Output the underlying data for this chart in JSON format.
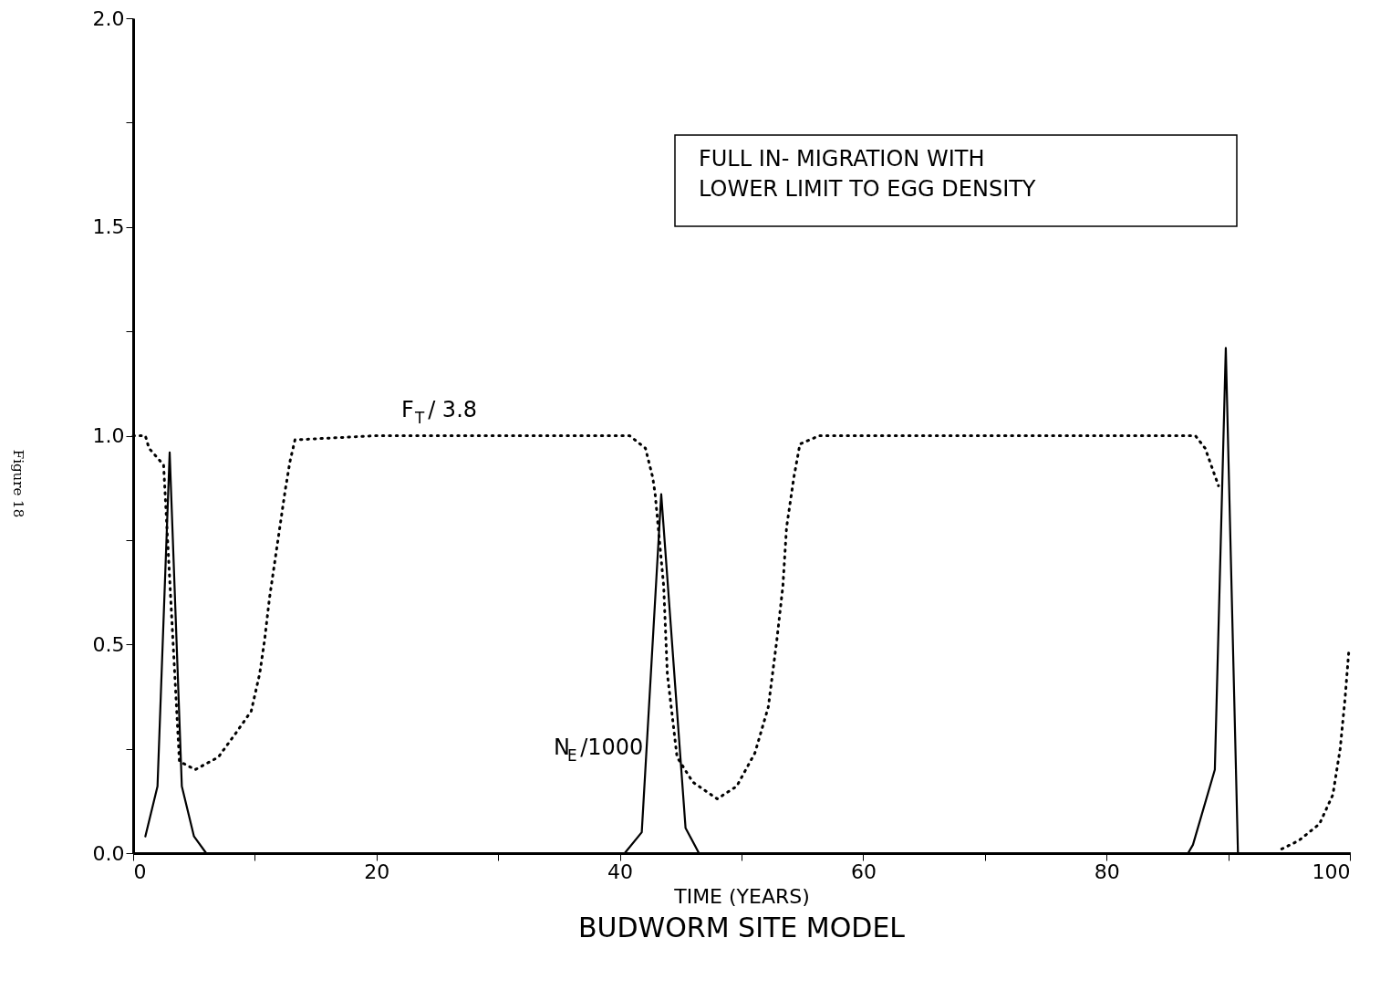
{
  "chart_data": {
    "type": "line",
    "title": "BUDWORM SITE MODEL",
    "xlabel": "TIME (YEARS)",
    "annotations": [
      "FULL  IN- MIGRATION  WITH\nLOWER  LIMIT  TO  EGG  DENSITY",
      "Figure 18"
    ],
    "xlim": [
      0,
      100
    ],
    "ylim": [
      0,
      2.0
    ],
    "xticks": [
      0,
      {
        "value": 10,
        "label": null
      },
      20,
      {
        "value": 30,
        "label": null
      },
      40,
      {
        "value": 50,
        "label": null
      },
      60,
      {
        "value": 70,
        "label": null
      },
      80,
      {
        "value": 90,
        "label": null
      },
      100
    ],
    "yticks": [
      {
        "value": 0,
        "label": "0.0"
      },
      {
        "value": 0.25,
        "label": null
      },
      {
        "value": 0.5,
        "label": "0.5"
      },
      {
        "value": 0.75,
        "label": null
      },
      {
        "value": 1.0,
        "label": "1.0"
      },
      {
        "value": 1.25,
        "label": null
      },
      {
        "value": 1.5,
        "label": "1.5"
      },
      {
        "value": 1.75,
        "label": null
      },
      {
        "value": 2.0,
        "label": "2.0"
      }
    ],
    "grid": false,
    "marker": "none",
    "series": [
      {
        "name": "F$_{T}$ / 3.8",
        "color": "#000000",
        "line_style": "dotted",
        "x": [
          0,
          1,
          1.3,
          2.5,
          3.8,
          5.1,
          7,
          8.5,
          9.7,
          10.4,
          10.8,
          11.2,
          11.7,
          12.1,
          12.5,
          12.9,
          13.3,
          20,
          30,
          40.8,
          42.1,
          42.7,
          42.9,
          43.6,
          43.9,
          44.7,
          46,
          48,
          49.6,
          51.1,
          52.2,
          52.9,
          53.4,
          53.7,
          54.3,
          54.8,
          56.4,
          70,
          87.3,
          88.1,
          89.2,
          91,
          94.4,
          95.8,
          97.5,
          98.6,
          99.2,
          99.6,
          99.9
        ],
        "values": [
          1.0,
          1.0,
          0.97,
          0.93,
          0.22,
          0.2,
          0.23,
          0.29,
          0.34,
          0.43,
          0.51,
          0.61,
          0.71,
          0.79,
          0.87,
          0.94,
          0.99,
          1.0,
          1.0,
          1.0,
          0.97,
          0.9,
          0.86,
          0.64,
          0.43,
          0.23,
          0.17,
          0.13,
          0.16,
          0.24,
          0.35,
          0.51,
          0.64,
          0.78,
          0.9,
          0.98,
          1.0,
          1.0,
          1.0,
          0.97,
          0.88,
          null,
          0.01,
          0.03,
          0.07,
          0.14,
          0.25,
          0.37,
          0.48
        ]
      },
      {
        "name": "N$_{E}$/1000",
        "color": "#000000",
        "line_style": "solid",
        "x": [
          1,
          2,
          3,
          4,
          5,
          6,
          40.4,
          41.8,
          43.4,
          45.4,
          46.5,
          86.7,
          87.1,
          88.9,
          89.8,
          90.8,
          100
        ],
        "values": [
          0.04,
          0.16,
          0.96,
          0.16,
          0.04,
          0,
          0,
          0.05,
          0.86,
          0.06,
          0,
          0,
          0.02,
          0.2,
          1.21,
          0,
          0
        ]
      }
    ]
  }
}
